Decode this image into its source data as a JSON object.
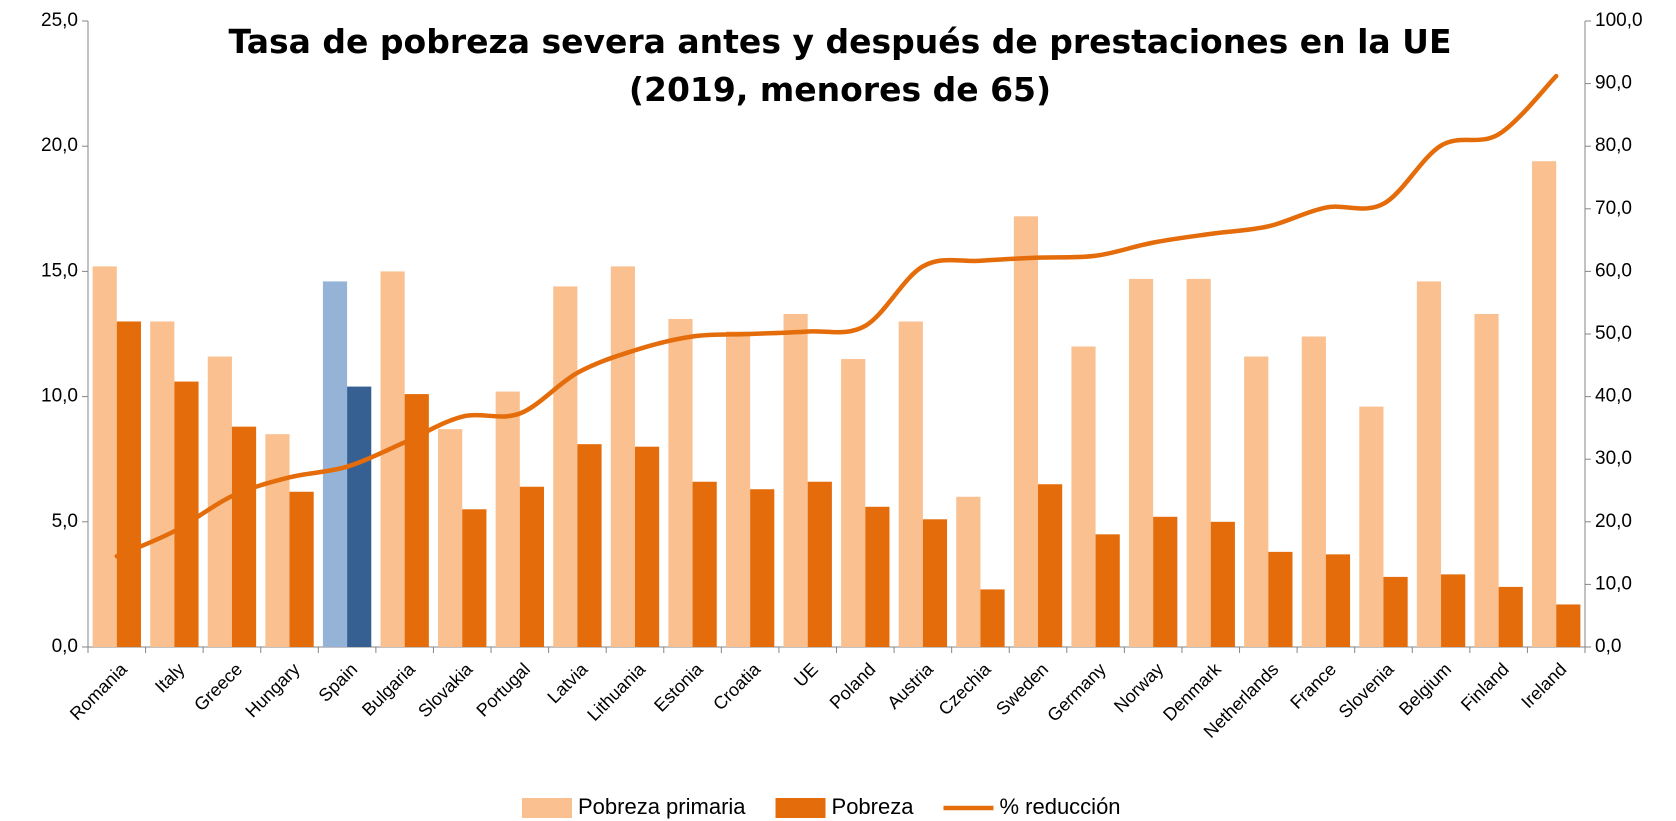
{
  "chart_data": {
    "type": "bar_line",
    "title": "Tasa de pobreza severa antes y después de prestaciones en la UE (2019, menores de 65)",
    "categories": [
      "Romania",
      "Italy",
      "Greece",
      "Hungary",
      "Spain",
      "Bulgaria",
      "Slovakia",
      "Portugal",
      "Latvia",
      "Lithuania",
      "Estonia",
      "Croatia",
      "UE",
      "Poland",
      "Austria",
      "Czechia",
      "Sweden",
      "Germany",
      "Norway",
      "Denmark",
      "Netherlands",
      "France",
      "Slovenia",
      "Belgium",
      "Finland",
      "Ireland"
    ],
    "series": [
      {
        "name": "Pobreza primaria",
        "type": "bar",
        "color": "#fac090",
        "highlight_color": "#95b3d7",
        "values": [
          15.2,
          13.0,
          11.6,
          8.5,
          14.6,
          15.0,
          8.7,
          10.2,
          14.4,
          15.2,
          13.1,
          12.6,
          13.3,
          11.5,
          13.0,
          6.0,
          17.2,
          12.0,
          14.7,
          14.7,
          11.6,
          12.4,
          9.6,
          14.6,
          13.3,
          19.4
        ]
      },
      {
        "name": "Pobreza",
        "type": "bar",
        "color": "#e46c0a",
        "highlight_color": "#366092",
        "values": [
          13.0,
          10.6,
          8.8,
          6.2,
          10.4,
          10.1,
          5.5,
          6.4,
          8.1,
          8.0,
          6.6,
          6.3,
          6.6,
          5.6,
          5.1,
          2.3,
          6.5,
          4.5,
          5.2,
          5.0,
          3.8,
          3.7,
          2.8,
          2.9,
          2.4,
          1.7
        ]
      },
      {
        "name": "% reducción",
        "type": "line",
        "axis": "y2",
        "color": "#e46c0a",
        "values": [
          14.5,
          18.5,
          24.1,
          27.1,
          28.8,
          32.7,
          36.8,
          37.3,
          43.8,
          47.4,
          49.6,
          50.0,
          50.4,
          51.3,
          60.8,
          61.7,
          62.2,
          62.5,
          64.6,
          66.0,
          67.2,
          70.2,
          70.8,
          80.1,
          81.9,
          91.2
        ]
      }
    ],
    "highlight_index": 4,
    "ylim": [
      0,
      25
    ],
    "yticks": [
      {
        "value": 0,
        "label": "0,0"
      },
      {
        "value": 5,
        "label": "5,0"
      },
      {
        "value": 10,
        "label": "10,0"
      },
      {
        "value": 15,
        "label": "15,0"
      },
      {
        "value": 20,
        "label": "20,0"
      },
      {
        "value": 25,
        "label": "25,0"
      }
    ],
    "y2lim": [
      0,
      100
    ],
    "y2ticks": [
      {
        "value": 0,
        "label": "0,0"
      },
      {
        "value": 10,
        "label": "10,0"
      },
      {
        "value": 20,
        "label": "20,0"
      },
      {
        "value": 30,
        "label": "30,0"
      },
      {
        "value": 40,
        "label": "40,0"
      },
      {
        "value": 50,
        "label": "50,0"
      },
      {
        "value": 60,
        "label": "60,0"
      },
      {
        "value": 70,
        "label": "70,0"
      },
      {
        "value": 80,
        "label": "80,0"
      },
      {
        "value": 90,
        "label": "90,0"
      },
      {
        "value": 100,
        "label": "100,0"
      }
    ],
    "grid": false,
    "legend": "bottom"
  }
}
